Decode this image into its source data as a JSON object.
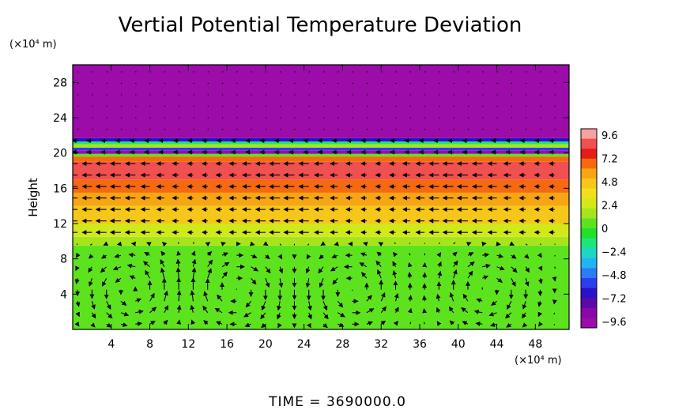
{
  "chart_data": {
    "type": "heatmap",
    "title": "Vertial Potential Temperature Deviation",
    "ylabel": "Height",
    "xlabel": "",
    "x_unit": "(×10⁴ m)",
    "y_unit": "(×10⁴ m)",
    "x_ticks": [
      4,
      8,
      12,
      16,
      20,
      24,
      28,
      32,
      36,
      40,
      44,
      48
    ],
    "y_ticks": [
      4,
      8,
      12,
      16,
      20,
      24,
      28
    ],
    "xlim": [
      0,
      51.5
    ],
    "ylim": [
      0,
      30
    ],
    "colorbar": {
      "ticks": [
        "9.6",
        "7.2",
        "4.8",
        "2.4",
        "0",
        "−2.4",
        "−4.8",
        "−7.2",
        "−9.6"
      ],
      "range": [
        -9.6,
        9.6
      ],
      "colors": [
        "#f7a1a1",
        "#f05050",
        "#e61c1c",
        "#f56a10",
        "#f7a613",
        "#f5c71a",
        "#f0e01c",
        "#d2e81a",
        "#a8e41c",
        "#5de31e",
        "#21e12a",
        "#1ce67a",
        "#1cd6c6",
        "#22b4f0",
        "#2a7df5",
        "#2b3ef0",
        "#2a12c8",
        "#5b0aa8",
        "#8a08a6",
        "#9b0ca8"
      ]
    },
    "bands": [
      {
        "y0": 0,
        "y1": 9.5,
        "value": 0.2
      },
      {
        "y0": 9.5,
        "y1": 10.5,
        "value": 1.2
      },
      {
        "y0": 10.5,
        "y1": 12.0,
        "value": 2.8
      },
      {
        "y0": 12.0,
        "y1": 14.0,
        "value": 4.0
      },
      {
        "y0": 14.0,
        "y1": 15.5,
        "value": 5.2
      },
      {
        "y0": 15.5,
        "y1": 17.0,
        "value": 6.3
      },
      {
        "y0": 17.0,
        "y1": 19.0,
        "value": 7.8
      },
      {
        "y0": 19.0,
        "y1": 19.6,
        "value": 6.5
      },
      {
        "y0": 19.6,
        "y1": 19.9,
        "value": 0.5
      },
      {
        "y0": 19.9,
        "y1": 20.3,
        "value": -9.0
      },
      {
        "y0": 20.3,
        "y1": 20.6,
        "value": -5.0
      },
      {
        "y0": 20.6,
        "y1": 21.0,
        "value": 1.5
      },
      {
        "y0": 21.0,
        "y1": 21.3,
        "value": -1.5
      },
      {
        "y0": 21.3,
        "y1": 21.7,
        "value": -6.0
      },
      {
        "y0": 21.7,
        "y1": 30.0,
        "value": -9.6
      }
    ],
    "vortex_centers_x": [
      6,
      17,
      29,
      43
    ],
    "vector_grid": {
      "dx": 1.5,
      "dy": 1.3,
      "x0": 0.5,
      "y0": 0.6
    }
  },
  "time_label": "TIME  =  3690000.0"
}
